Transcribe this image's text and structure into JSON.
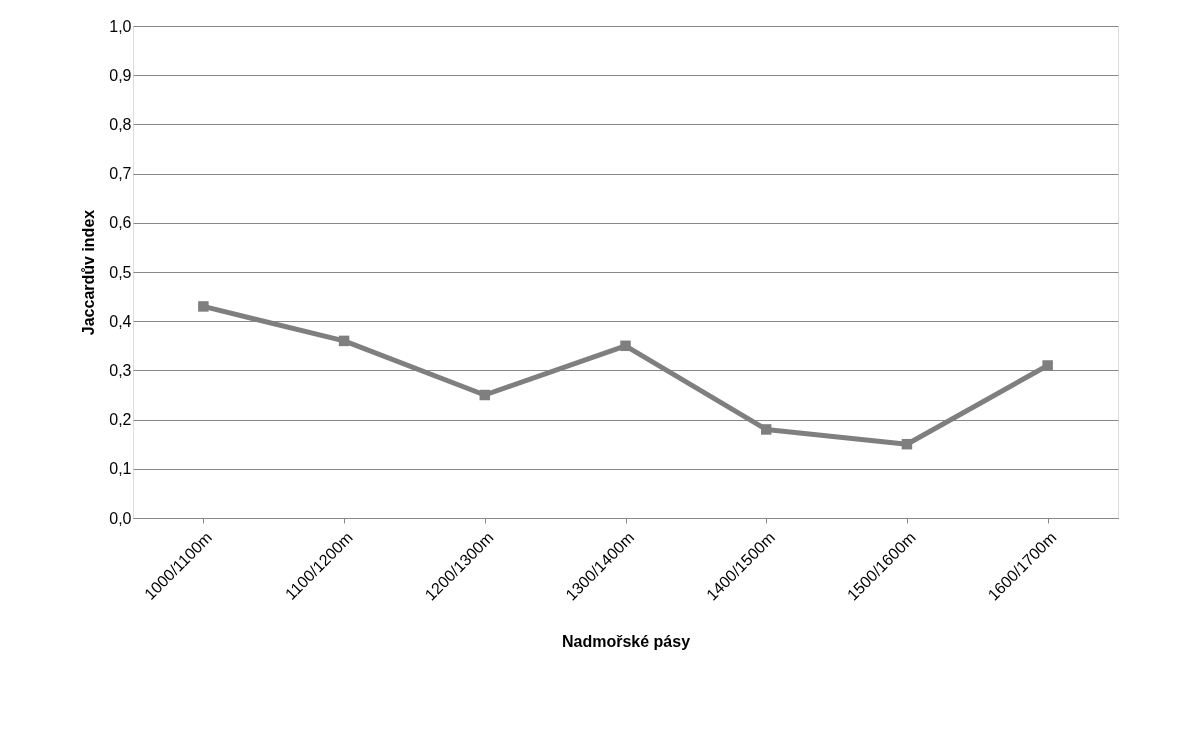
{
  "chart_data": {
    "type": "line",
    "xlabel": "Nadmořské pásy",
    "ylabel": "Jaccardův index",
    "categories": [
      "1000/1100m",
      "1100/1200m",
      "1200/1300m",
      "1300/1400m",
      "1400/1500m",
      "1500/1600m",
      "1600/1700m"
    ],
    "series": [
      {
        "color": "#7f7f7f",
        "values": [
          0.43,
          0.36,
          0.25,
          0.35,
          0.18,
          0.15,
          0.31
        ]
      }
    ],
    "ylim": [
      0,
      1
    ],
    "yticks": [
      {
        "value": 0,
        "label": "0,0"
      },
      {
        "value": 0.1,
        "label": "0,1"
      },
      {
        "value": 0.2,
        "label": "0,2"
      },
      {
        "value": 0.3,
        "label": "0,3"
      },
      {
        "value": 0.4,
        "label": "0,4"
      },
      {
        "value": 0.5,
        "label": "0,5"
      },
      {
        "value": 0.6,
        "label": "0,6"
      },
      {
        "value": 0.7,
        "label": "0,7"
      },
      {
        "value": 0.8,
        "label": "0,8"
      },
      {
        "value": 0.9,
        "label": "0,9"
      },
      {
        "value": 1,
        "label": "1,0"
      }
    ],
    "grid": "y",
    "marker": "square",
    "line_style": "solid"
  }
}
